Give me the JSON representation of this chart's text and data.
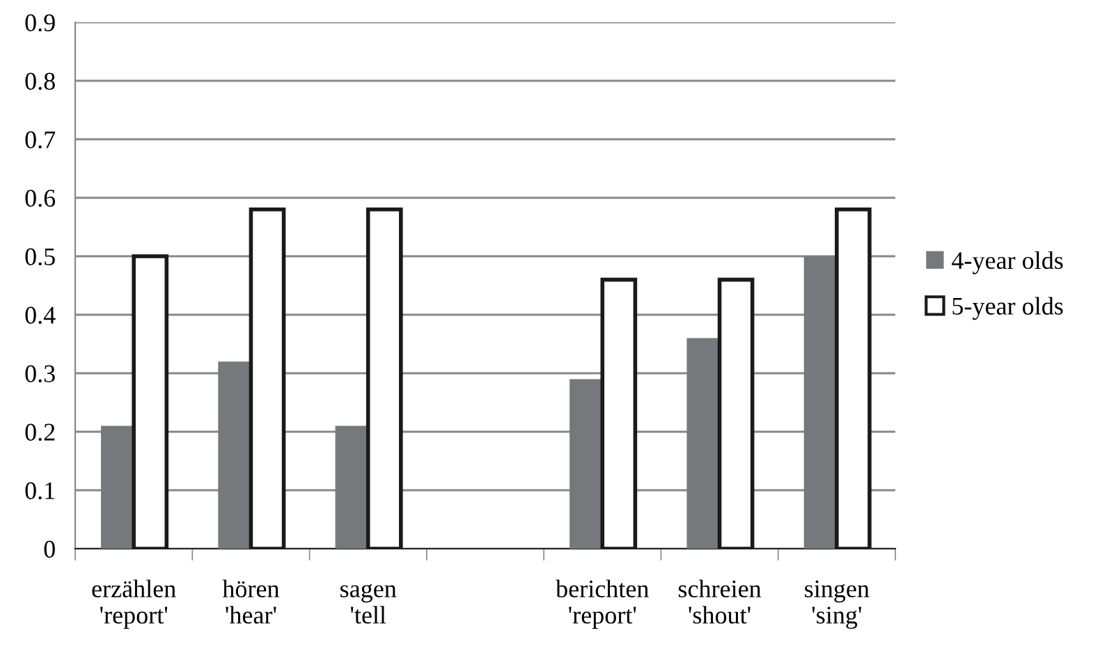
{
  "chart_data": {
    "type": "bar",
    "categories": [
      "erzählen\n'report'",
      "hören\n'hear'",
      "sagen\n'tell",
      null,
      "berichten\n'report'",
      "schreien\n'shout'",
      "singen\n'sing'"
    ],
    "series": [
      {
        "name": "4-year olds",
        "color": "#77787b",
        "values": [
          0.21,
          0.32,
          0.21,
          null,
          0.29,
          0.36,
          0.5
        ]
      },
      {
        "name": "5-year olds",
        "color": "#ffffff",
        "values": [
          0.5,
          0.58,
          0.58,
          null,
          0.46,
          0.46,
          0.58
        ]
      }
    ],
    "ylim": [
      0,
      0.9
    ],
    "yticks": [
      0,
      0.1,
      0.2,
      0.3,
      0.4,
      0.5,
      0.6,
      0.7,
      0.8,
      0.9
    ],
    "grid": "y",
    "legend": "right"
  }
}
